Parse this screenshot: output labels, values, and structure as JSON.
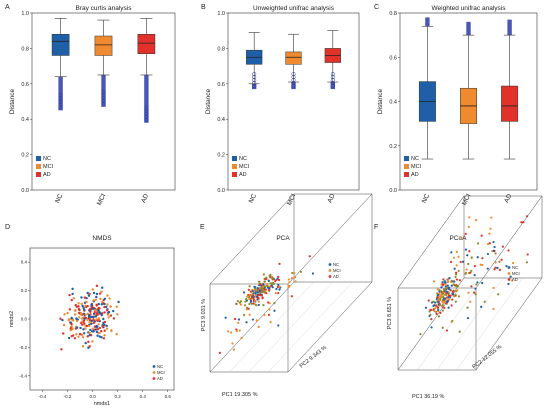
{
  "colors": {
    "NC": "#1f5fa8",
    "MCI": "#ef8a2e",
    "AD": "#e0322b",
    "outlier": "#2b3aa8",
    "scatter_olive": "#8a8a2a"
  },
  "chart_data": [
    {
      "panel": "A",
      "type": "box",
      "title": "Bray curtis analysis",
      "ylabel": "Distance",
      "ylim": [
        0,
        1.0
      ],
      "yticks": [
        "0.0",
        "0.2",
        "0.4",
        "0.6",
        "0.8",
        "1.0"
      ],
      "categories": [
        "NC",
        "MCI",
        "AD"
      ],
      "legend": [
        "NC",
        "MCI",
        "AD"
      ],
      "legend_position": "bottom-left",
      "boxes": [
        {
          "group": "NC",
          "q1": 0.76,
          "median": 0.84,
          "q3": 0.88,
          "whisker_low": 0.64,
          "whisker_high": 0.97,
          "outlier_low": 0.45
        },
        {
          "group": "MCI",
          "q1": 0.76,
          "median": 0.82,
          "q3": 0.87,
          "whisker_low": 0.65,
          "whisker_high": 0.96,
          "outlier_low": 0.47
        },
        {
          "group": "AD",
          "q1": 0.77,
          "median": 0.83,
          "q3": 0.88,
          "whisker_low": 0.65,
          "whisker_high": 0.97,
          "outlier_low": 0.38
        }
      ]
    },
    {
      "panel": "B",
      "type": "box",
      "title": "Unweighted unifrac analysis",
      "ylabel": "Distance",
      "ylim": [
        0,
        1.0
      ],
      "yticks": [
        "0.0",
        "0.2",
        "0.4",
        "0.6",
        "0.8",
        "1.0"
      ],
      "categories": [
        "NC",
        "MCI",
        "AD"
      ],
      "legend": [
        "NC",
        "MCI",
        "AD"
      ],
      "legend_position": "bottom-left",
      "boxes": [
        {
          "group": "NC",
          "q1": 0.71,
          "median": 0.75,
          "q3": 0.79,
          "whisker_low": 0.6,
          "whisker_high": 0.89,
          "outlier_low": 0.57
        },
        {
          "group": "MCI",
          "q1": 0.71,
          "median": 0.75,
          "q3": 0.78,
          "whisker_low": 0.61,
          "whisker_high": 0.88,
          "outlier_low": 0.57
        },
        {
          "group": "AD",
          "q1": 0.72,
          "median": 0.76,
          "q3": 0.8,
          "whisker_low": 0.61,
          "whisker_high": 0.9,
          "outlier_low": 0.57
        }
      ]
    },
    {
      "panel": "C",
      "type": "box",
      "title": "Weighted unifrac analysis",
      "ylabel": "Distance",
      "ylim": [
        0,
        0.8
      ],
      "yticks": [
        "0.0",
        "0.2",
        "0.4",
        "0.6",
        "0.8"
      ],
      "categories": [
        "NC",
        "MCI",
        "AD"
      ],
      "legend": [
        "NC",
        "MCI",
        "AD"
      ],
      "legend_position": "bottom-left",
      "boxes": [
        {
          "group": "NC",
          "q1": 0.31,
          "median": 0.4,
          "q3": 0.49,
          "whisker_low": 0.14,
          "whisker_high": 0.74,
          "outlier_high": 0.78
        },
        {
          "group": "MCI",
          "q1": 0.3,
          "median": 0.38,
          "q3": 0.46,
          "whisker_low": 0.14,
          "whisker_high": 0.7,
          "outlier_high": 0.76
        },
        {
          "group": "AD",
          "q1": 0.31,
          "median": 0.38,
          "q3": 0.47,
          "whisker_low": 0.14,
          "whisker_high": 0.7,
          "outlier_high": 0.77
        }
      ]
    },
    {
      "panel": "D",
      "type": "scatter",
      "title": "NMDS",
      "xlabel": "nmds1",
      "ylabel": "nmds2",
      "xlim": [
        -0.5,
        0.65
      ],
      "ylim": [
        -0.5,
        0.5
      ],
      "xticks": [
        "-0.4",
        "-0.2",
        "0.0",
        "0.2",
        "0.4",
        "0.6"
      ],
      "yticks": [
        "-0.4",
        "-0.2",
        "0.0",
        "0.2",
        "0.4"
      ],
      "legend": [
        "NC",
        "MCI",
        "AD"
      ],
      "legend_position": "bottom-right"
    },
    {
      "panel": "E",
      "type": "scatter",
      "title": "PCA",
      "axis_labels": [
        "PC1  19.305 %",
        "PC2  9.343 %",
        "PC3  9.031 %"
      ],
      "legend": [
        "NC",
        "MCI",
        "AD"
      ],
      "legend_position": "top-right"
    },
    {
      "panel": "F",
      "type": "scatter",
      "title": "PCoA",
      "axis_labels": [
        "PC1  36.19 %",
        "PC2  12.055 %",
        "PC3  8.651 %"
      ],
      "legend": [
        "NC",
        "MCI",
        "AD"
      ],
      "legend_position": "top-right"
    }
  ]
}
